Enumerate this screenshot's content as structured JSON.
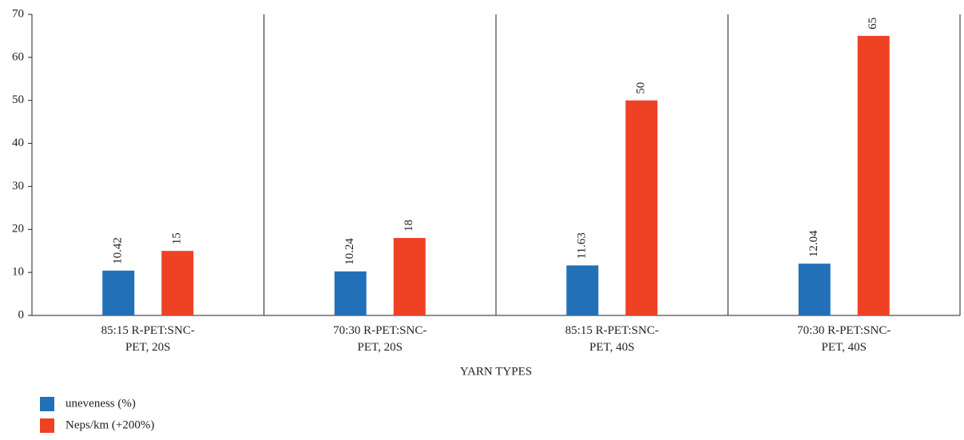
{
  "chart_data": {
    "type": "bar",
    "categories": [
      "85:15 R-PET:SNC-PET, 20S",
      "70:30 R-PET:SNC-PET, 20S",
      "85:15 R-PET:SNC-PET, 40S",
      "70:30 R-PET:SNC-PET, 40S"
    ],
    "series": [
      {
        "name": "uneveness (%)",
        "color": "#2271b8",
        "values": [
          10.42,
          10.24,
          11.63,
          12.04
        ]
      },
      {
        "name": "Neps/km (+200%)",
        "color": "#ef4123",
        "values": [
          15,
          18,
          50,
          65
        ]
      }
    ],
    "x_label": "YARN TYPES",
    "ylim": [
      0,
      70
    ],
    "yticks": [
      0,
      10,
      20,
      30,
      40,
      50,
      60,
      70
    ]
  }
}
